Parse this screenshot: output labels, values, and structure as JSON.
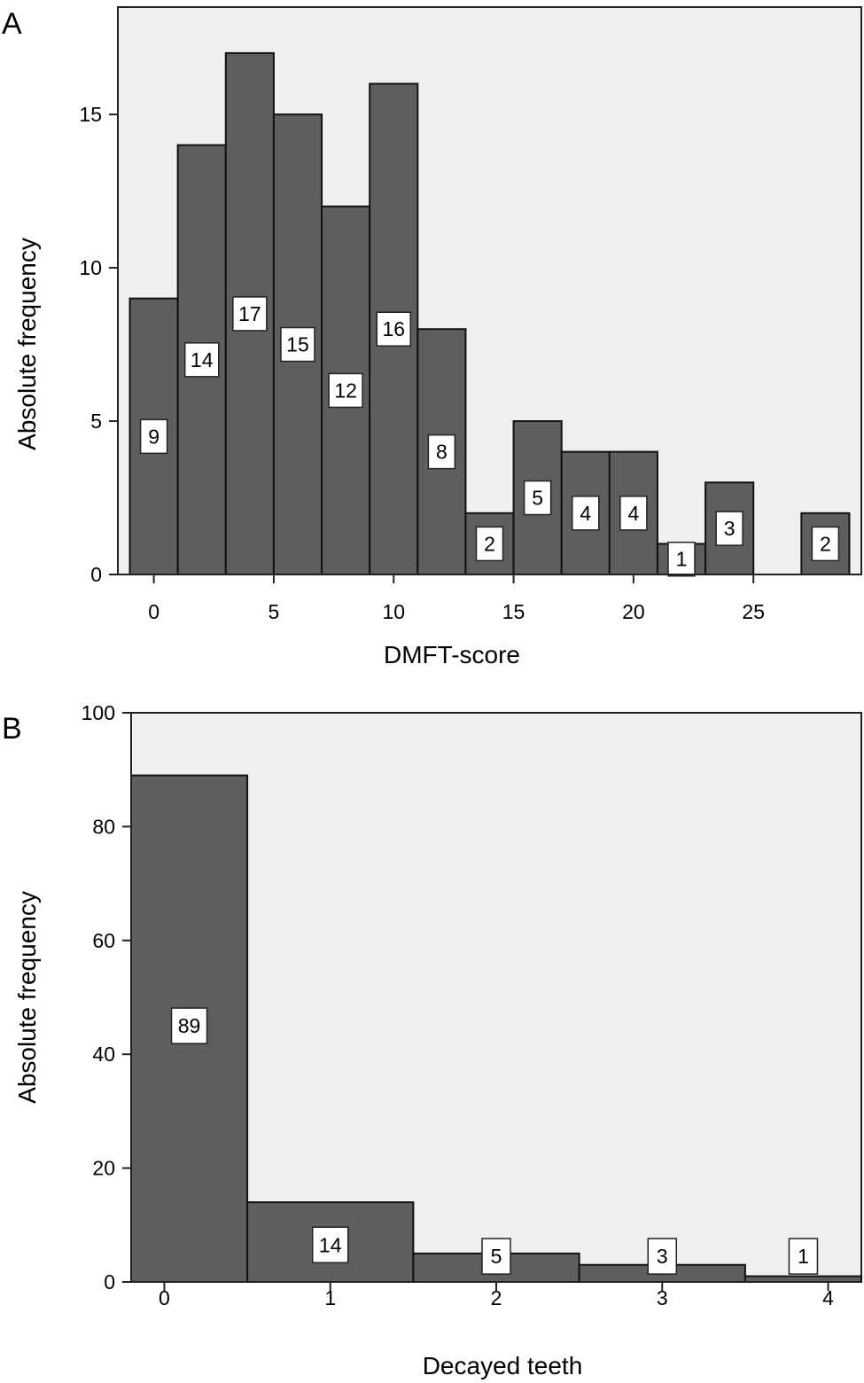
{
  "chart_data": [
    {
      "panel_label": "A",
      "type": "bar",
      "xlabel": "DMFT-score",
      "ylabel": "Absolute frequency",
      "xlim": [
        -1.5,
        29.5
      ],
      "ylim": [
        0,
        18.5
      ],
      "xticks": [
        0,
        5,
        10,
        15,
        20,
        25
      ],
      "yticks": [
        0,
        5,
        10,
        15
      ],
      "bin_width": 2,
      "bars": [
        {
          "start": -1,
          "value": 9,
          "label": "9"
        },
        {
          "start": 1,
          "value": 14,
          "label": "14"
        },
        {
          "start": 3,
          "value": 17,
          "label": "17"
        },
        {
          "start": 5,
          "value": 15,
          "label": "15"
        },
        {
          "start": 7,
          "value": 12,
          "label": "12"
        },
        {
          "start": 9,
          "value": 16,
          "label": "16"
        },
        {
          "start": 11,
          "value": 8,
          "label": "8"
        },
        {
          "start": 13,
          "value": 2,
          "label": "2"
        },
        {
          "start": 15,
          "value": 5,
          "label": "5"
        },
        {
          "start": 17,
          "value": 4,
          "label": "4"
        },
        {
          "start": 19,
          "value": 4,
          "label": "4"
        },
        {
          "start": 21,
          "value": 1,
          "label": "1"
        },
        {
          "start": 23,
          "value": 3,
          "label": "3"
        },
        {
          "start": 27,
          "value": 2,
          "label": "2"
        }
      ],
      "bar_color": "#5e5e5e",
      "background_color": "#efefef"
    },
    {
      "panel_label": "B",
      "type": "bar",
      "xlabel": "Decayed teeth",
      "ylabel": "Absolute frequency",
      "xlim": [
        -0.2,
        4.2
      ],
      "ylim": [
        0,
        100
      ],
      "xticks": [
        0,
        1,
        2,
        3,
        4
      ],
      "yticks": [
        0,
        20,
        40,
        60,
        80,
        100
      ],
      "bin_width": 1,
      "bars": [
        {
          "start": -0.2,
          "end": 0.5,
          "value": 89,
          "label": "89"
        },
        {
          "start": 0.5,
          "end": 1.5,
          "value": 14,
          "label": "14"
        },
        {
          "start": 1.5,
          "end": 2.5,
          "value": 5,
          "label": "5"
        },
        {
          "start": 2.5,
          "end": 3.5,
          "value": 3,
          "label": "3"
        },
        {
          "start": 3.5,
          "end": 4.2,
          "value": 1,
          "label": "1"
        }
      ],
      "bar_color": "#5e5e5e",
      "background_color": "#efefef"
    }
  ]
}
